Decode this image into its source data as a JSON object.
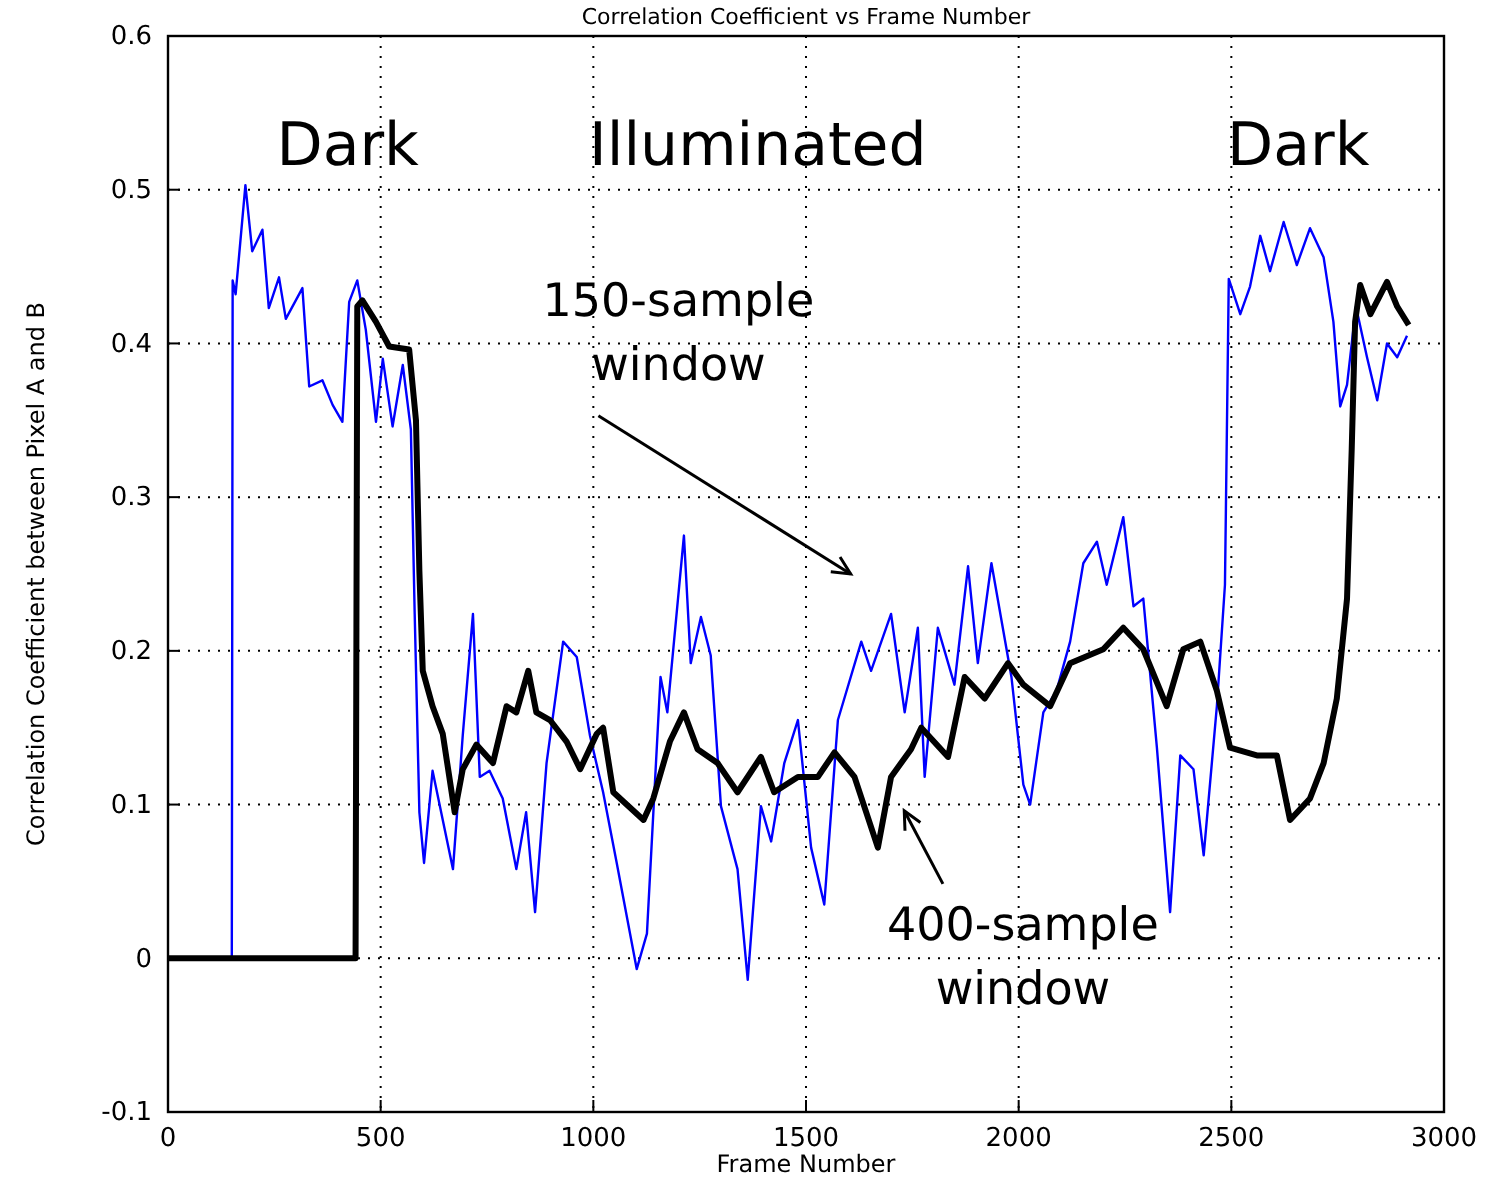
{
  "chart_data": {
    "type": "line",
    "title": "Correlation Coefficient vs Frame Number",
    "xlabel": "Frame Number",
    "ylabel": "Correlation Coefficient between Pixel A and B",
    "xlim": [
      0,
      3000
    ],
    "xticks": [
      0,
      500,
      1000,
      1500,
      2000,
      2500,
      3000
    ],
    "ylim": [
      -0.1,
      0.6
    ],
    "yticks": [
      -0.1,
      0,
      0.1,
      0.2,
      0.3,
      0.4,
      0.5,
      0.6
    ],
    "grid": true,
    "line_style": "solid",
    "marker": "none",
    "annotations": [
      "Dark",
      "Illuminated",
      "Dark",
      "150-sample window",
      "400-sample window"
    ],
    "series": [
      {
        "color": "#0000ff",
        "x": [
          150,
          152,
          159,
          182,
          198,
          222,
          237,
          261,
          277,
          316,
          332,
          363,
          387,
          410,
          426,
          445,
          465,
          489,
          505,
          528,
          552,
          571,
          580,
          591,
          602,
          622,
          646,
          670,
          693,
          717,
          733,
          756,
          787,
          819,
          842,
          863,
          890,
          929,
          961,
          992,
          1023,
          1055,
          1102,
          1126,
          1158,
          1174,
          1213,
          1229,
          1253,
          1276,
          1300,
          1339,
          1363,
          1394,
          1418,
          1449,
          1481,
          1512,
          1543,
          1575,
          1630,
          1653,
          1700,
          1732,
          1763,
          1779,
          1810,
          1849,
          1881,
          1904,
          1936,
          1983,
          2011,
          2027,
          2058,
          2089,
          2121,
          2152,
          2184,
          2207,
          2246,
          2270,
          2293,
          2325,
          2356,
          2380,
          2411,
          2435,
          2466,
          2485,
          2494,
          2521,
          2544,
          2568,
          2591,
          2623,
          2654,
          2685,
          2717,
          2740,
          2756,
          2772,
          2793,
          2819,
          2843,
          2866,
          2890,
          2913
        ],
        "values": [
          0,
          0.441,
          0.432,
          0.503,
          0.46,
          0.474,
          0.423,
          0.443,
          0.416,
          0.436,
          0.372,
          0.376,
          0.36,
          0.349,
          0.427,
          0.441,
          0.409,
          0.349,
          0.39,
          0.346,
          0.386,
          0.344,
          0.224,
          0.095,
          0.062,
          0.122,
          0.09,
          0.058,
          0.145,
          0.224,
          0.118,
          0.122,
          0.104,
          0.058,
          0.095,
          0.03,
          0.127,
          0.206,
          0.196,
          0.145,
          0.108,
          0.062,
          -0.007,
          0.016,
          0.183,
          0.16,
          0.275,
          0.192,
          0.222,
          0.197,
          0.099,
          0.058,
          -0.014,
          0.099,
          0.076,
          0.127,
          0.155,
          0.072,
          0.035,
          0.155,
          0.206,
          0.187,
          0.224,
          0.16,
          0.215,
          0.118,
          0.215,
          0.178,
          0.255,
          0.192,
          0.257,
          0.183,
          0.113,
          0.1,
          0.16,
          0.174,
          0.206,
          0.257,
          0.271,
          0.243,
          0.287,
          0.229,
          0.234,
          0.137,
          0.03,
          0.132,
          0.123,
          0.067,
          0.164,
          0.243,
          0.442,
          0.419,
          0.437,
          0.47,
          0.447,
          0.479,
          0.451,
          0.475,
          0.456,
          0.414,
          0.359,
          0.373,
          0.424,
          0.391,
          0.363,
          0.4,
          0.391,
          0.405
        ]
      },
      {
        "color": "#000000",
        "x": [
          0,
          441,
          443,
          445,
          457,
          489,
          520,
          567,
          583,
          591,
          599,
          622,
          646,
          674,
          693,
          725,
          764,
          796,
          819,
          847,
          866,
          898,
          937,
          969,
          1008,
          1023,
          1047,
          1118,
          1141,
          1180,
          1213,
          1245,
          1292,
          1339,
          1394,
          1425,
          1481,
          1528,
          1567,
          1614,
          1669,
          1700,
          1747,
          1771,
          1834,
          1873,
          1920,
          1975,
          2011,
          2074,
          2121,
          2199,
          2246,
          2293,
          2348,
          2387,
          2427,
          2466,
          2497,
          2560,
          2607,
          2638,
          2685,
          2717,
          2748,
          2772,
          2783,
          2791,
          2803,
          2827,
          2866,
          2890,
          2917
        ],
        "values": [
          0,
          0,
          0.215,
          0.424,
          0.428,
          0.414,
          0.398,
          0.396,
          0.35,
          0.252,
          0.187,
          0.164,
          0.146,
          0.095,
          0.123,
          0.139,
          0.127,
          0.164,
          0.16,
          0.187,
          0.16,
          0.155,
          0.141,
          0.123,
          0.146,
          0.15,
          0.108,
          0.09,
          0.104,
          0.141,
          0.16,
          0.136,
          0.127,
          0.108,
          0.131,
          0.108,
          0.118,
          0.118,
          0.134,
          0.118,
          0.072,
          0.118,
          0.136,
          0.15,
          0.131,
          0.183,
          0.169,
          0.192,
          0.178,
          0.164,
          0.192,
          0.201,
          0.215,
          0.201,
          0.164,
          0.201,
          0.206,
          0.174,
          0.137,
          0.132,
          0.132,
          0.09,
          0.104,
          0.127,
          0.169,
          0.234,
          0.331,
          0.414,
          0.438,
          0.419,
          0.44,
          0.424,
          0.412
        ]
      }
    ]
  }
}
